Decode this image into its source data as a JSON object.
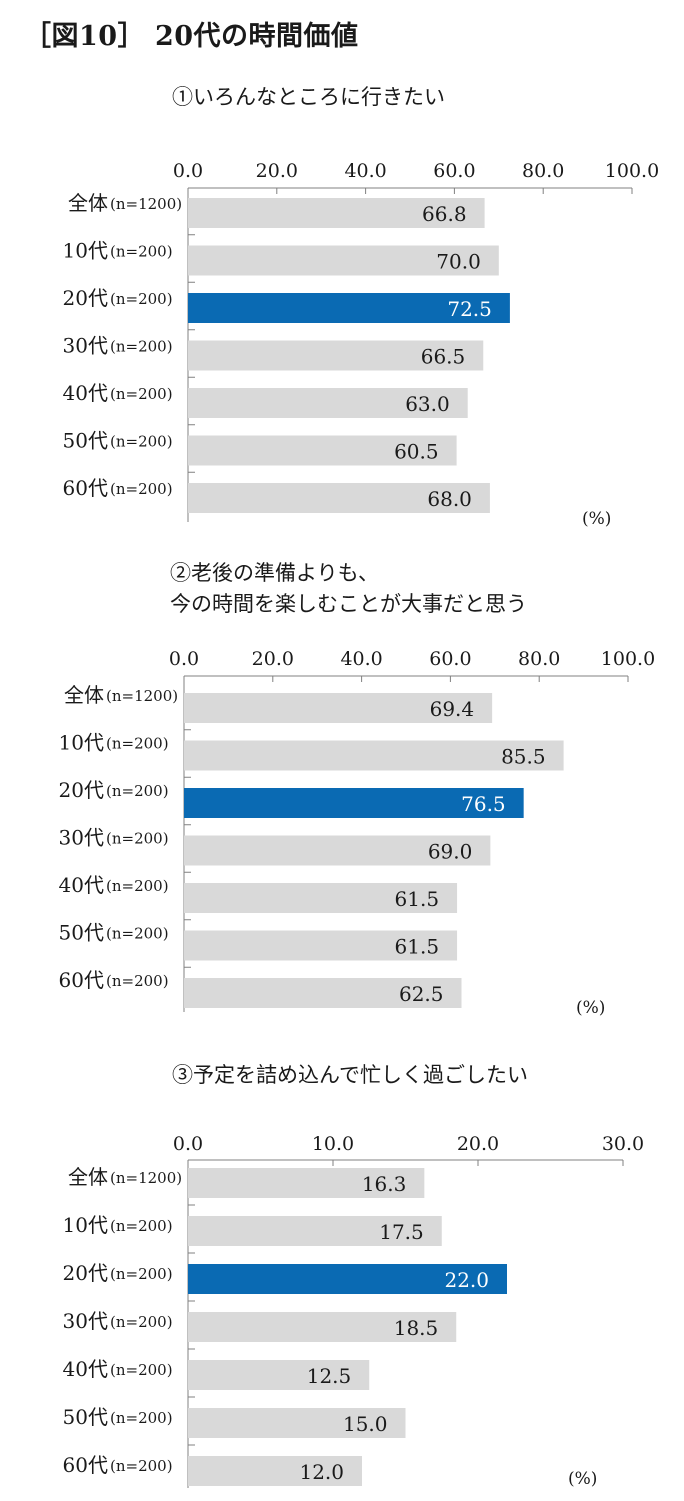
{
  "page_title": "［図10］ 20代の時間価値",
  "colors": {
    "bar": "#d9d9d9",
    "highlight": "#0a6ab3",
    "axis": "#808080",
    "text": "#1a1a1a"
  },
  "chart_data": [
    {
      "type": "bar",
      "orientation": "horizontal",
      "title": "①いろんなところに行きたい",
      "title_lines": [
        "①いろんなところに行きたい"
      ],
      "categories": [
        "全体",
        "10代",
        "20代",
        "30代",
        "40代",
        "50代",
        "60代"
      ],
      "sample_sizes": [
        "(n=1200)",
        "(n=200)",
        "(n=200)",
        "(n=200)",
        "(n=200)",
        "(n=200)",
        "(n=200)"
      ],
      "values": [
        66.8,
        70.0,
        72.5,
        66.5,
        63.0,
        60.5,
        68.0
      ],
      "value_labels": [
        "66.8",
        "70.0",
        "72.5",
        "66.5",
        "63.0",
        "60.5",
        "68.0"
      ],
      "highlight_category": "20代",
      "xlim": [
        0,
        100
      ],
      "ticks": [
        0,
        20,
        40,
        60,
        80,
        100
      ],
      "tick_labels": [
        "0.0",
        "20.0",
        "40.0",
        "60.0",
        "80.0",
        "100.0"
      ],
      "unit": "(%)"
    },
    {
      "type": "bar",
      "orientation": "horizontal",
      "title": "②老後の準備よりも、今の時間を楽しむことが大事だと思う",
      "title_lines": [
        "②老後の準備よりも、",
        "今の時間を楽しむことが大事だと思う"
      ],
      "categories": [
        "全体",
        "10代",
        "20代",
        "30代",
        "40代",
        "50代",
        "60代"
      ],
      "sample_sizes": [
        "(n=1200)",
        "(n=200)",
        "(n=200)",
        "(n=200)",
        "(n=200)",
        "(n=200)",
        "(n=200)"
      ],
      "values": [
        69.4,
        85.5,
        76.5,
        69.0,
        61.5,
        61.5,
        62.5
      ],
      "value_labels": [
        "69.4",
        "85.5",
        "76.5",
        "69.0",
        "61.5",
        "61.5",
        "62.5"
      ],
      "highlight_category": "20代",
      "xlim": [
        0,
        100
      ],
      "ticks": [
        0,
        20,
        40,
        60,
        80,
        100
      ],
      "tick_labels": [
        "0.0",
        "20.0",
        "40.0",
        "60.0",
        "80.0",
        "100.0"
      ],
      "unit": "(%)"
    },
    {
      "type": "bar",
      "orientation": "horizontal",
      "title": "③予定を詰め込んで忙しく過ごしたい",
      "title_lines": [
        "③予定を詰め込んで忙しく過ごしたい"
      ],
      "categories": [
        "全体",
        "10代",
        "20代",
        "30代",
        "40代",
        "50代",
        "60代"
      ],
      "sample_sizes": [
        "(n=1200)",
        "(n=200)",
        "(n=200)",
        "(n=200)",
        "(n=200)",
        "(n=200)",
        "(n=200)"
      ],
      "values": [
        16.3,
        17.5,
        22.0,
        18.5,
        12.5,
        15.0,
        12.0
      ],
      "value_labels": [
        "16.3",
        "17.5",
        "22.0",
        "18.5",
        "12.5",
        "15.0",
        "12.0"
      ],
      "highlight_category": "20代",
      "xlim": [
        0,
        30
      ],
      "ticks": [
        0,
        10,
        20,
        30
      ],
      "tick_labels": [
        "0.0",
        "10.0",
        "20.0",
        "30.0"
      ],
      "unit": "(%)"
    }
  ]
}
